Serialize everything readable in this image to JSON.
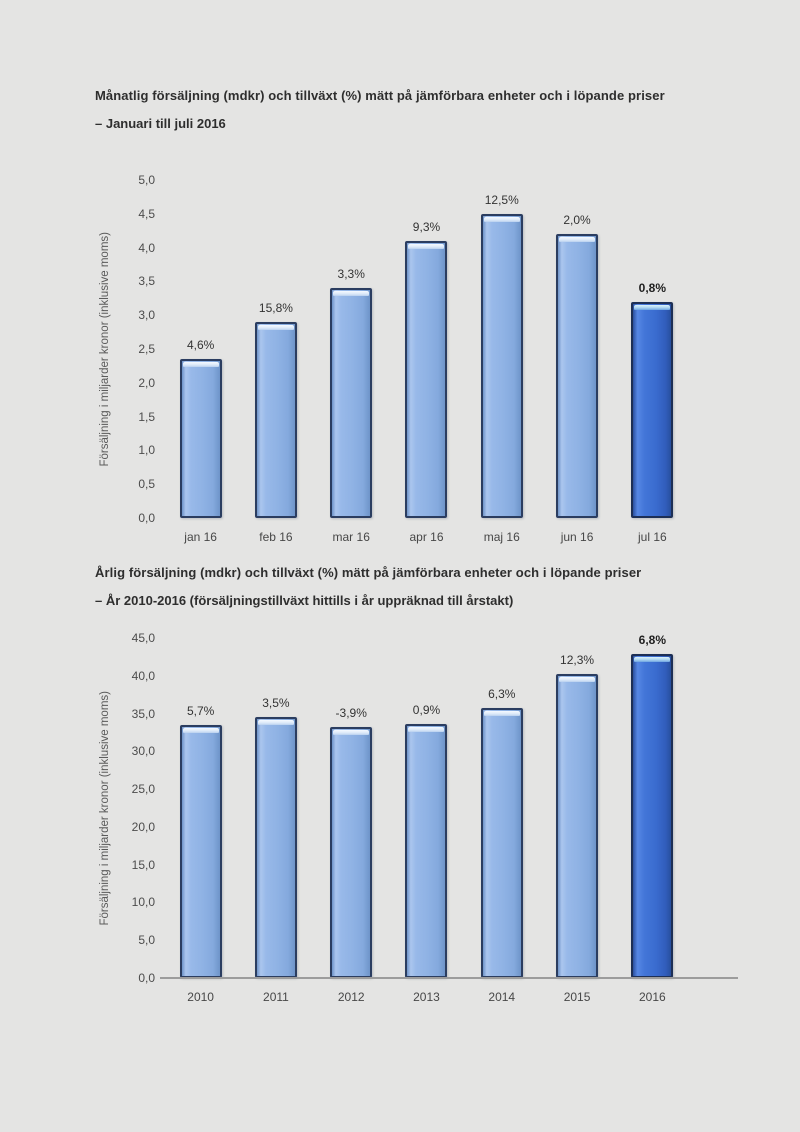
{
  "page": {
    "background_color": "#e4e4e3"
  },
  "colors": {
    "bar_light": "#8fb2e4",
    "bar_highlight": "#3a6ccf",
    "bar_outline": "#2b3d60",
    "axis_line": "#9c9c9c",
    "text": "#2e2e2e"
  },
  "chart_data": [
    {
      "type": "bar",
      "title": "Månatlig försäljning (mdkr) och tillväxt (%) mätt på jämförbara enheter och i löpande priser",
      "subtitle": "– Januari till juli 2016",
      "xlabel": "",
      "ylabel": "Försäljning i miljarder kronor (inklusive moms)",
      "categories": [
        "jan 16",
        "feb 16",
        "mar 16",
        "apr 16",
        "maj 16",
        "jun 16",
        "jul 16"
      ],
      "values": [
        2.35,
        2.9,
        3.4,
        4.1,
        4.5,
        4.2,
        3.2
      ],
      "bar_labels": [
        "4,6%",
        "15,8%",
        "3,3%",
        "9,3%",
        "12,5%",
        "2,0%",
        "0,8%"
      ],
      "ylim": [
        0,
        5
      ],
      "yticks": [
        "5,0",
        "4,5",
        "4,0",
        "3,5",
        "3,0",
        "2,5",
        "2,0",
        "1,5",
        "1,0",
        "0,5",
        "0,0"
      ],
      "grid": false,
      "legend": null,
      "axis_line": false,
      "highlight_last": true,
      "emphasize_last_label": true
    },
    {
      "type": "bar",
      "title": "Årlig försäljning (mdkr) och tillväxt (%) mätt på jämförbara enheter och i löpande priser",
      "subtitle": "– År 2010-2016 (försäljningstillväxt hittills i år uppräknad till årstakt)",
      "xlabel": "",
      "ylabel": "Försäljning i miljarder kronor (inklusive moms)",
      "categories": [
        "2010",
        "2011",
        "2012",
        "2013",
        "2014",
        "2015",
        "2016"
      ],
      "values": [
        33.5,
        34.6,
        33.2,
        33.6,
        35.8,
        40.2,
        42.9
      ],
      "bar_labels": [
        "5,7%",
        "3,5%",
        "-3,9%",
        "0,9%",
        "6,3%",
        "12,3%",
        "6,8%"
      ],
      "ylim": [
        0,
        45
      ],
      "yticks": [
        "45,0",
        "40,0",
        "35,0",
        "30,0",
        "25,0",
        "20,0",
        "15,0",
        "10,0",
        "5,0",
        "0,0"
      ],
      "grid": false,
      "legend": null,
      "axis_line": true,
      "highlight_last": true,
      "emphasize_last_label": true
    }
  ]
}
